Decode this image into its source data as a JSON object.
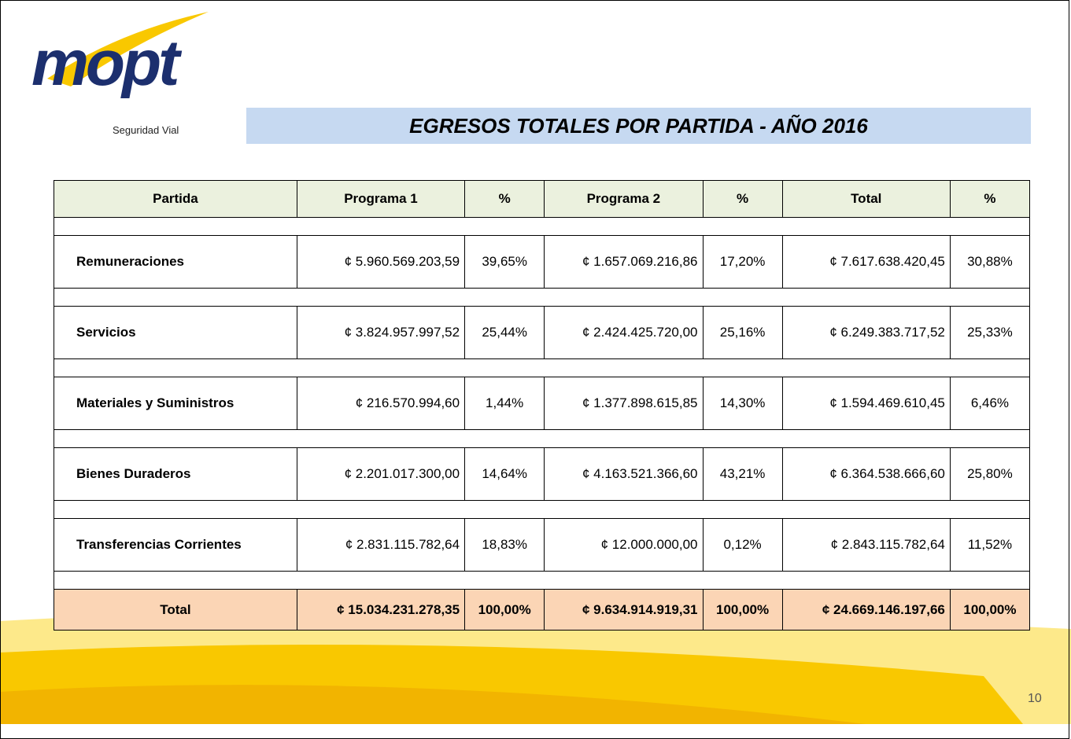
{
  "logo": {
    "name": "mopt",
    "tagline": "Seguridad Vial"
  },
  "title": "EGRESOS TOTALES POR PARTIDA - AÑO 2016",
  "table": {
    "header": [
      "Partida",
      "Programa 1",
      "%",
      "Programa 2",
      "%",
      "Total",
      "%"
    ],
    "rows": [
      [
        "Remuneraciones",
        "¢ 5.960.569.203,59",
        "39,65%",
        "¢ 1.657.069.216,86",
        "17,20%",
        "¢ 7.617.638.420,45",
        "30,88%"
      ],
      [
        "Servicios",
        "¢ 3.824.957.997,52",
        "25,44%",
        "¢ 2.424.425.720,00",
        "25,16%",
        "¢ 6.249.383.717,52",
        "25,33%"
      ],
      [
        "Materiales y Suministros",
        "¢ 216.570.994,60",
        "1,44%",
        "¢ 1.377.898.615,85",
        "14,30%",
        "¢ 1.594.469.610,45",
        "6,46%"
      ],
      [
        "Bienes Duraderos",
        "¢ 2.201.017.300,00",
        "14,64%",
        "¢ 4.163.521.366,60",
        "43,21%",
        "¢ 6.364.538.666,60",
        "25,80%"
      ],
      [
        "Transferencias Corrientes",
        "¢ 2.831.115.782,64",
        "18,83%",
        "¢ 12.000.000,00",
        "0,12%",
        "¢ 2.843.115.782,64",
        "11,52%"
      ]
    ],
    "total": [
      "Total",
      "¢ 15.034.231.278,35",
      "100,00%",
      "¢ 9.634.914.919,31",
      "100,00%",
      "¢ 24.669.146.197,66",
      "100,00%"
    ]
  },
  "page_number": "10"
}
